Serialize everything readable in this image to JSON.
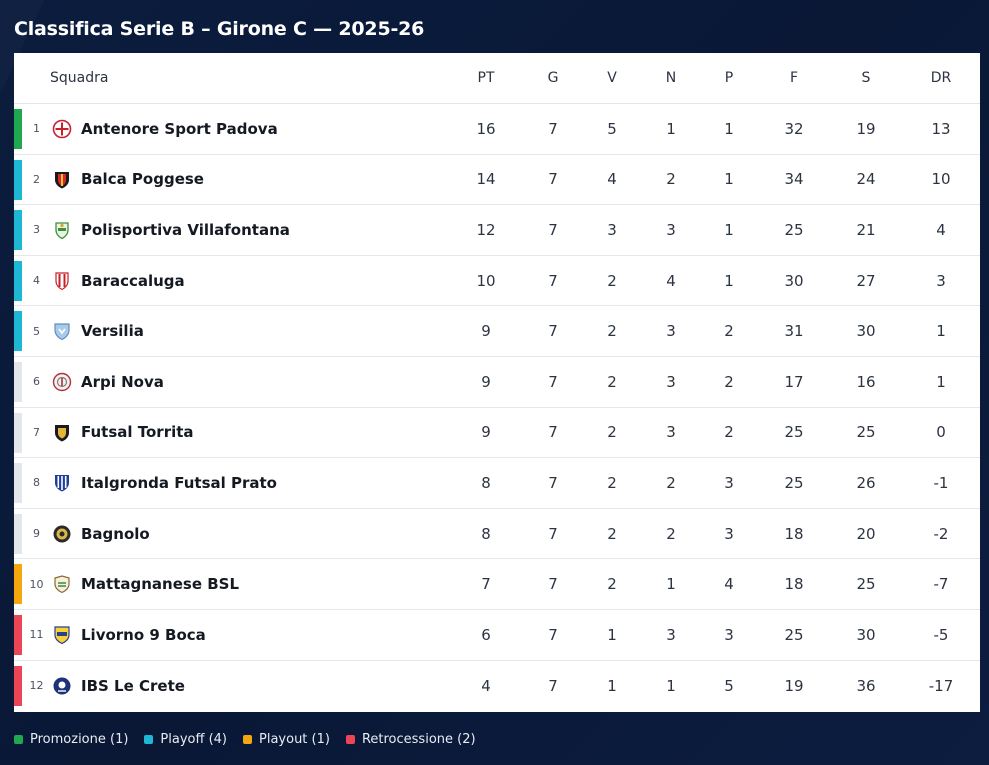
{
  "title": "Classifica Serie B – Girone C — 2025-26",
  "columns": {
    "team": "Squadra",
    "pt": "PT",
    "g": "G",
    "v": "V",
    "n": "N",
    "p": "P",
    "f": "F",
    "s": "S",
    "dr": "DR"
  },
  "zone_colors": {
    "promozione": "#1fa84f",
    "playoff": "#1eb8d4",
    "playout": "#f4a70f",
    "retrocessione": "#ec4555",
    "none": "#e3e6eb"
  },
  "rows": [
    {
      "pos": "1",
      "team": "Antenore Sport Padova",
      "pt": "16",
      "g": "7",
      "v": "5",
      "n": "1",
      "p": "1",
      "f": "32",
      "s": "19",
      "dr": "13",
      "zone": "promozione",
      "crest": "crest-red-white-shield-icon"
    },
    {
      "pos": "2",
      "team": "Balca Poggese",
      "pt": "14",
      "g": "7",
      "v": "4",
      "n": "2",
      "p": "1",
      "f": "34",
      "s": "24",
      "dr": "10",
      "zone": "playoff",
      "crest": "crest-red-black-shield-icon"
    },
    {
      "pos": "3",
      "team": "Polisportiva Villafontana",
      "pt": "12",
      "g": "7",
      "v": "3",
      "n": "3",
      "p": "1",
      "f": "25",
      "s": "21",
      "dr": "4",
      "zone": "playoff",
      "crest": "crest-green-shield-icon"
    },
    {
      "pos": "4",
      "team": "Baraccaluga",
      "pt": "10",
      "g": "7",
      "v": "2",
      "n": "4",
      "p": "1",
      "f": "30",
      "s": "27",
      "dr": "3",
      "zone": "playoff",
      "crest": "crest-red-striped-shield-icon"
    },
    {
      "pos": "5",
      "team": "Versilia",
      "pt": "9",
      "g": "7",
      "v": "2",
      "n": "3",
      "p": "2",
      "f": "31",
      "s": "30",
      "dr": "1",
      "zone": "playoff",
      "crest": "crest-light-blue-shield-icon"
    },
    {
      "pos": "6",
      "team": "Arpi Nova",
      "pt": "9",
      "g": "7",
      "v": "2",
      "n": "3",
      "p": "2",
      "f": "17",
      "s": "16",
      "dr": "1",
      "zone": "none",
      "crest": "crest-grey-red-round-icon"
    },
    {
      "pos": "7",
      "team": "Futsal Torrita",
      "pt": "9",
      "g": "7",
      "v": "2",
      "n": "3",
      "p": "2",
      "f": "25",
      "s": "25",
      "dr": "0",
      "zone": "none",
      "crest": "crest-black-gold-shield-icon"
    },
    {
      "pos": "8",
      "team": "Italgronda Futsal Prato",
      "pt": "8",
      "g": "7",
      "v": "2",
      "n": "2",
      "p": "3",
      "f": "25",
      "s": "26",
      "dr": "-1",
      "zone": "none",
      "crest": "crest-blue-striped-shield-icon"
    },
    {
      "pos": "9",
      "team": "Bagnolo",
      "pt": "8",
      "g": "7",
      "v": "2",
      "n": "2",
      "p": "3",
      "f": "18",
      "s": "20",
      "dr": "-2",
      "zone": "none",
      "crest": "crest-black-yellow-round-icon"
    },
    {
      "pos": "10",
      "team": "Mattagnanese BSL",
      "pt": "7",
      "g": "7",
      "v": "2",
      "n": "1",
      "p": "4",
      "f": "18",
      "s": "25",
      "dr": "-7",
      "zone": "playout",
      "crest": "crest-green-brown-shield-icon"
    },
    {
      "pos": "11",
      "team": "Livorno 9 Boca",
      "pt": "6",
      "g": "7",
      "v": "1",
      "n": "3",
      "p": "3",
      "f": "25",
      "s": "30",
      "dr": "-5",
      "zone": "retrocessione",
      "crest": "crest-yellow-blue-shield-icon"
    },
    {
      "pos": "12",
      "team": "IBS Le Crete",
      "pt": "4",
      "g": "7",
      "v": "1",
      "n": "1",
      "p": "5",
      "f": "19",
      "s": "36",
      "dr": "-17",
      "zone": "retrocessione",
      "crest": "crest-navy-round-icon"
    }
  ],
  "legend": [
    {
      "label": "Promozione (1)",
      "zone": "promozione"
    },
    {
      "label": "Playoff (4)",
      "zone": "playoff"
    },
    {
      "label": "Playout (1)",
      "zone": "playout"
    },
    {
      "label": "Retrocessione (2)",
      "zone": "retrocessione"
    }
  ]
}
